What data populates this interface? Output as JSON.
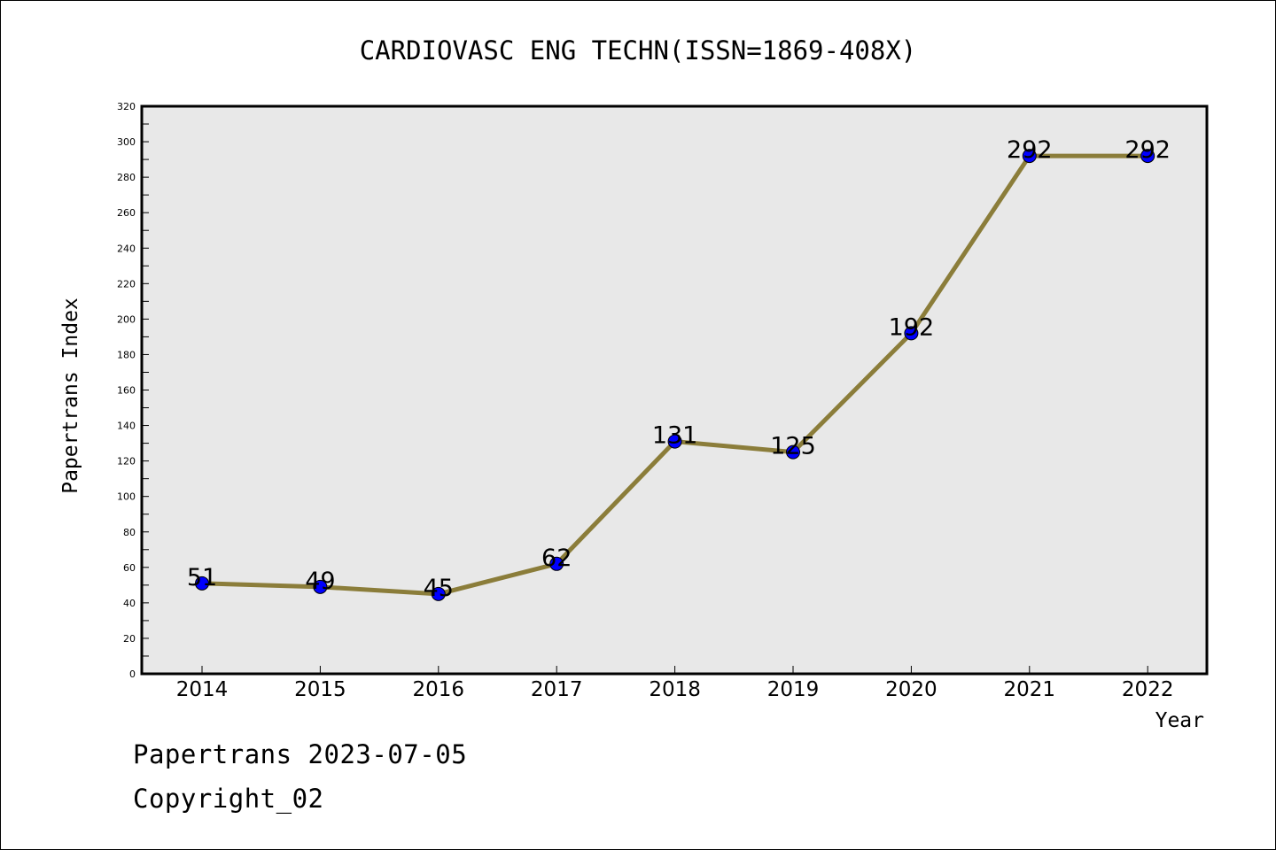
{
  "chart_data": {
    "type": "line",
    "title": "CARDIOVASC ENG TECHN(ISSN=1869-408X)",
    "xlabel": "Year",
    "ylabel": "Papertrans Index",
    "categories": [
      "2014",
      "2015",
      "2016",
      "2017",
      "2018",
      "2019",
      "2020",
      "2021",
      "2022"
    ],
    "series": [
      {
        "values": [
          51,
          49,
          45,
          62,
          131,
          125,
          192,
          292,
          292
        ]
      }
    ],
    "data_labels": [
      "51",
      "49",
      "45",
      "62",
      "131",
      "125",
      "192",
      "292",
      "292"
    ],
    "ylim": [
      0,
      320
    ],
    "yticks": [
      "0",
      "20",
      "40",
      "60",
      "80",
      "100",
      "120",
      "140",
      "160",
      "180",
      "200",
      "220",
      "240",
      "260",
      "280",
      "300",
      "320"
    ],
    "grid": false,
    "legend": "none",
    "colors": {
      "line": "#8B7D3A",
      "marker": "#0000FF",
      "plot_background": "#E8E8E8",
      "axes": "#000000"
    }
  },
  "footer": {
    "source": "Papertrans 2023-07-05",
    "copyright": "Copyright_02"
  }
}
